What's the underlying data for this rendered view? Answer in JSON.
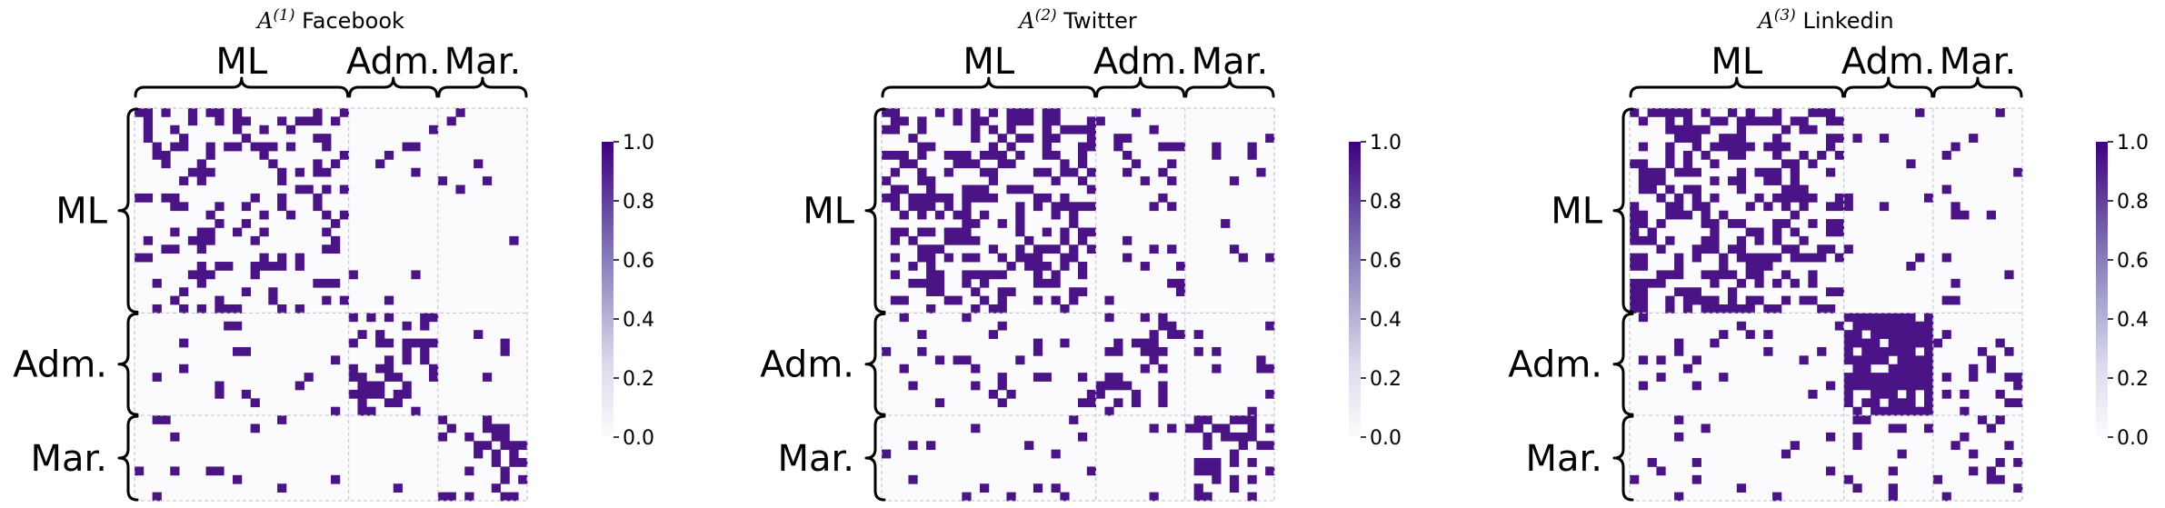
{
  "chart_data": [
    {
      "type": "heatmap",
      "title_var": "A",
      "title_sup": "(1)",
      "title_name": "Facebook",
      "row_groups": [
        {
          "label": "ML",
          "size": 24
        },
        {
          "label": "Adm.",
          "size": 12
        },
        {
          "label": "Mar.",
          "size": 10
        }
      ],
      "col_groups": [
        {
          "label": "ML",
          "size": 24
        },
        {
          "label": "Adm.",
          "size": 10
        },
        {
          "label": "Mar.",
          "size": 10
        }
      ],
      "colorbar": {
        "min": 0.0,
        "max": 1.0,
        "ticks": [
          "0.0",
          "0.2",
          "0.4",
          "0.6",
          "0.8",
          "1.0"
        ]
      },
      "color_empty": "#fbfafd",
      "color_full": "#4a1486",
      "block_density": [
        [
          0.28,
          0.04,
          0.05
        ],
        [
          0.04,
          0.38,
          0.02
        ],
        [
          0.05,
          0.02,
          0.3
        ]
      ],
      "seed": 11
    },
    {
      "type": "heatmap",
      "title_var": "A",
      "title_sup": "(2)",
      "title_name": "Twitter",
      "row_groups": [
        {
          "label": "ML",
          "size": 24
        },
        {
          "label": "Adm.",
          "size": 12
        },
        {
          "label": "Mar.",
          "size": 10
        }
      ],
      "col_groups": [
        {
          "label": "ML",
          "size": 24
        },
        {
          "label": "Adm.",
          "size": 10
        },
        {
          "label": "Mar.",
          "size": 10
        }
      ],
      "colorbar": {
        "min": 0.0,
        "max": 1.0,
        "ticks": [
          "0.0",
          "0.2",
          "0.4",
          "0.6",
          "0.8",
          "1.0"
        ]
      },
      "color_empty": "#fbfafd",
      "color_full": "#4a1486",
      "block_density": [
        [
          0.4,
          0.08,
          0.07
        ],
        [
          0.08,
          0.28,
          0.06
        ],
        [
          0.07,
          0.06,
          0.42
        ]
      ],
      "seed": 23
    },
    {
      "type": "heatmap",
      "title_var": "A",
      "title_sup": "(3)",
      "title_name": "Linkedin",
      "row_groups": [
        {
          "label": "ML",
          "size": 24
        },
        {
          "label": "Adm.",
          "size": 12
        },
        {
          "label": "Mar.",
          "size": 10
        }
      ],
      "col_groups": [
        {
          "label": "ML",
          "size": 24
        },
        {
          "label": "Adm.",
          "size": 10
        },
        {
          "label": "Mar.",
          "size": 10
        }
      ],
      "colorbar": {
        "min": 0.0,
        "max": 1.0,
        "ticks": [
          "0.0",
          "0.2",
          "0.4",
          "0.6",
          "0.8",
          "1.0"
        ]
      },
      "color_empty": "#fbfafd",
      "color_full": "#4a1486",
      "block_density": [
        [
          0.42,
          0.05,
          0.06
        ],
        [
          0.05,
          0.82,
          0.14
        ],
        [
          0.06,
          0.14,
          0.2
        ]
      ],
      "seed": 37
    }
  ]
}
